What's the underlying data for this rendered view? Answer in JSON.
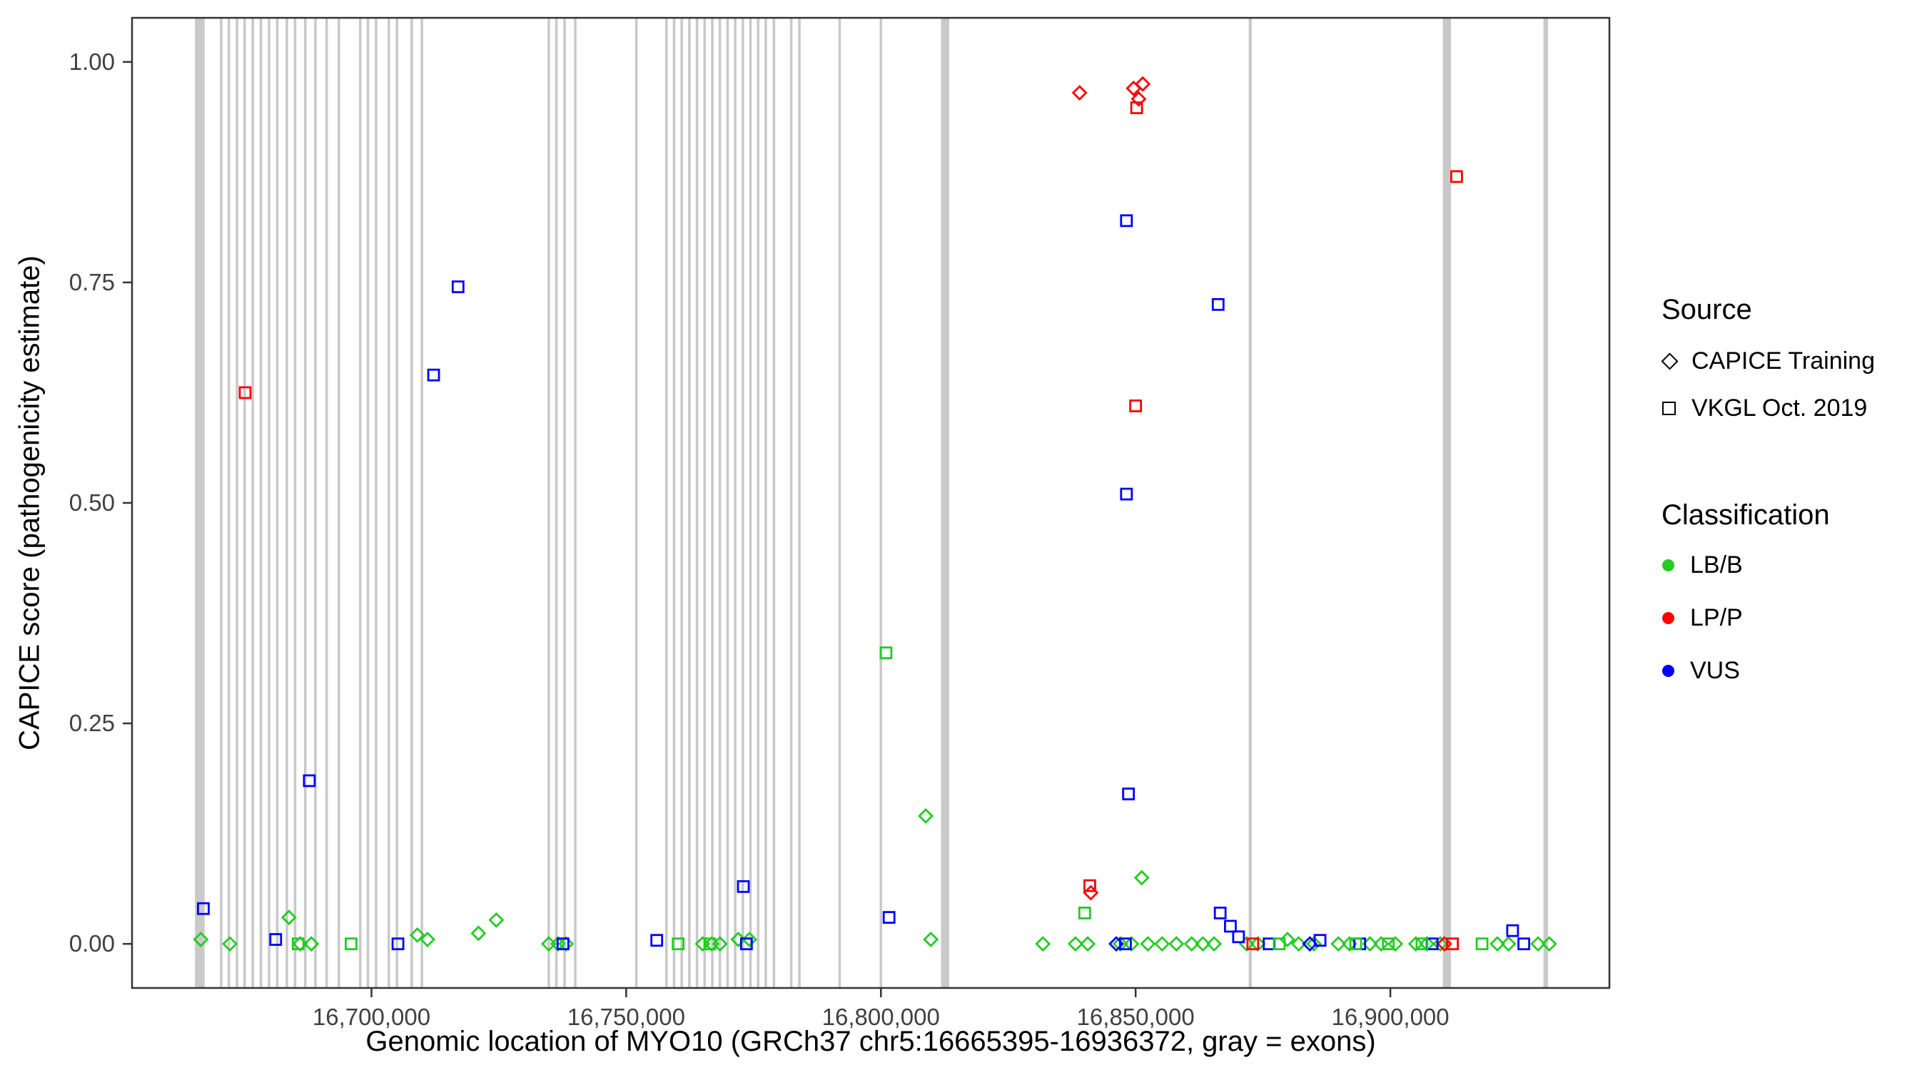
{
  "chart_data": {
    "type": "scatter",
    "title": "",
    "xlabel": "Genomic location of MYO10 (GRCh37 chr5:16665395-16936372, gray = exons)",
    "ylabel": "CAPICE score (pathogenicity estimate)",
    "xlim": [
      16653000,
      16943000
    ],
    "ylim": [
      -0.05,
      1.05
    ],
    "grid": false,
    "x_ticks": [
      {
        "value": 16700000,
        "label": "16,700,000"
      },
      {
        "value": 16750000,
        "label": "16,750,000"
      },
      {
        "value": 16800000,
        "label": "16,800,000"
      },
      {
        "value": 16850000,
        "label": "16,850,000"
      },
      {
        "value": 16900000,
        "label": "16,900,000"
      }
    ],
    "y_ticks": [
      {
        "value": 0.0,
        "label": "0.00"
      },
      {
        "value": 0.25,
        "label": "0.25"
      },
      {
        "value": 0.5,
        "label": "0.50"
      },
      {
        "value": 0.75,
        "label": "0.75"
      },
      {
        "value": 1.0,
        "label": "1.00"
      }
    ],
    "colors": {
      "LB/B": "#22CC22",
      "LP/P": "#FF0000",
      "VUS": "#0000FF",
      "exon": "#C9C9C9",
      "axis_text": "#404040",
      "panel_border": "#333333"
    },
    "source_markers": {
      "CAPICE": "diamond",
      "VKGL": "square"
    },
    "legend": {
      "position": "right",
      "source": {
        "title": "Source",
        "items": [
          {
            "label": "CAPICE Training",
            "marker": "diamond"
          },
          {
            "label": "VKGL Oct. 2019",
            "marker": "square"
          }
        ]
      },
      "classification": {
        "title": "Classification",
        "items": [
          {
            "label": "LB/B",
            "color": "#22CC22"
          },
          {
            "label": "LP/P",
            "color": "#FF0000"
          },
          {
            "label": "VUS",
            "color": "#0000FF"
          }
        ]
      }
    },
    "exons_format": [
      "genomic_position",
      "width_bp"
    ],
    "exons": [
      [
        16666300,
        1900
      ],
      [
        16670500,
        500
      ],
      [
        16672000,
        500
      ],
      [
        16673600,
        500
      ],
      [
        16675100,
        500
      ],
      [
        16676700,
        500
      ],
      [
        16678300,
        500
      ],
      [
        16679900,
        500
      ],
      [
        16681500,
        500
      ],
      [
        16683400,
        500
      ],
      [
        16685000,
        500
      ],
      [
        16687000,
        500
      ],
      [
        16689000,
        500
      ],
      [
        16691200,
        500
      ],
      [
        16693600,
        500
      ],
      [
        16697800,
        500
      ],
      [
        16699300,
        500
      ],
      [
        16700900,
        500
      ],
      [
        16703400,
        500
      ],
      [
        16705000,
        500
      ],
      [
        16707900,
        500
      ],
      [
        16709900,
        500
      ],
      [
        16734800,
        500
      ],
      [
        16736300,
        500
      ],
      [
        16737900,
        500
      ],
      [
        16740000,
        500
      ],
      [
        16752000,
        500
      ],
      [
        16757900,
        500
      ],
      [
        16759400,
        500
      ],
      [
        16760900,
        500
      ],
      [
        16762400,
        500
      ],
      [
        16763900,
        500
      ],
      [
        16765400,
        500
      ],
      [
        16766900,
        500
      ],
      [
        16768400,
        500
      ],
      [
        16769900,
        500
      ],
      [
        16771400,
        500
      ],
      [
        16772900,
        500
      ],
      [
        16774400,
        500
      ],
      [
        16775900,
        500
      ],
      [
        16777400,
        500
      ],
      [
        16779000,
        500
      ],
      [
        16782400,
        500
      ],
      [
        16784000,
        500
      ],
      [
        16791900,
        500
      ],
      [
        16800000,
        500
      ],
      [
        16812600,
        1600
      ],
      [
        16872500,
        600
      ],
      [
        16911100,
        1600
      ],
      [
        16930500,
        900
      ]
    ],
    "points_format": [
      "genomic_position",
      "capice_score",
      "source",
      "classification"
    ],
    "points": [
      [
        16666500,
        0.005,
        "CAPICE",
        "LB/B"
      ],
      [
        16672200,
        0.0,
        "CAPICE",
        "LB/B"
      ],
      [
        16683800,
        0.03,
        "CAPICE",
        "LB/B"
      ],
      [
        16686000,
        0.0,
        "CAPICE",
        "LB/B"
      ],
      [
        16688200,
        0.0,
        "CAPICE",
        "LB/B"
      ],
      [
        16709000,
        0.01,
        "CAPICE",
        "LB/B"
      ],
      [
        16711000,
        0.005,
        "CAPICE",
        "LB/B"
      ],
      [
        16721000,
        0.012,
        "CAPICE",
        "LB/B"
      ],
      [
        16724500,
        0.027,
        "CAPICE",
        "LB/B"
      ],
      [
        16734800,
        0.0,
        "CAPICE",
        "LB/B"
      ],
      [
        16736600,
        0.0,
        "CAPICE",
        "LB/B"
      ],
      [
        16738200,
        0.0,
        "CAPICE",
        "LB/B"
      ],
      [
        16765000,
        0.0,
        "CAPICE",
        "LB/B"
      ],
      [
        16766800,
        0.0,
        "CAPICE",
        "LB/B"
      ],
      [
        16768400,
        0.0,
        "CAPICE",
        "LB/B"
      ],
      [
        16772000,
        0.005,
        "CAPICE",
        "LB/B"
      ],
      [
        16774200,
        0.005,
        "CAPICE",
        "LB/B"
      ],
      [
        16808800,
        0.145,
        "CAPICE",
        "LB/B"
      ],
      [
        16809800,
        0.005,
        "CAPICE",
        "LB/B"
      ],
      [
        16831800,
        0.0,
        "CAPICE",
        "LB/B"
      ],
      [
        16838200,
        0.0,
        "CAPICE",
        "LB/B"
      ],
      [
        16840600,
        0.0,
        "CAPICE",
        "LB/B"
      ],
      [
        16847000,
        0.0,
        "CAPICE",
        "LB/B"
      ],
      [
        16849200,
        0.0,
        "CAPICE",
        "LB/B"
      ],
      [
        16851200,
        0.075,
        "CAPICE",
        "LB/B"
      ],
      [
        16852400,
        0.0,
        "CAPICE",
        "LB/B"
      ],
      [
        16855200,
        0.0,
        "CAPICE",
        "LB/B"
      ],
      [
        16858000,
        0.0,
        "CAPICE",
        "LB/B"
      ],
      [
        16861000,
        0.0,
        "CAPICE",
        "LB/B"
      ],
      [
        16863200,
        0.0,
        "CAPICE",
        "LB/B"
      ],
      [
        16865400,
        0.0,
        "CAPICE",
        "LB/B"
      ],
      [
        16871800,
        0.0,
        "CAPICE",
        "LB/B"
      ],
      [
        16874000,
        0.0,
        "CAPICE",
        "LB/B"
      ],
      [
        16879800,
        0.005,
        "CAPICE",
        "LB/B"
      ],
      [
        16882000,
        0.0,
        "CAPICE",
        "LB/B"
      ],
      [
        16885000,
        0.0,
        "CAPICE",
        "LB/B"
      ],
      [
        16889800,
        0.0,
        "CAPICE",
        "LB/B"
      ],
      [
        16892000,
        0.0,
        "CAPICE",
        "LB/B"
      ],
      [
        16896000,
        0.0,
        "CAPICE",
        "LB/B"
      ],
      [
        16898200,
        0.0,
        "CAPICE",
        "LB/B"
      ],
      [
        16901000,
        0.0,
        "CAPICE",
        "LB/B"
      ],
      [
        16905000,
        0.0,
        "CAPICE",
        "LB/B"
      ],
      [
        16907200,
        0.0,
        "CAPICE",
        "LB/B"
      ],
      [
        16909800,
        0.0,
        "CAPICE",
        "LB/B"
      ],
      [
        16921000,
        0.0,
        "CAPICE",
        "LB/B"
      ],
      [
        16923200,
        0.0,
        "CAPICE",
        "LB/B"
      ],
      [
        16929000,
        0.0,
        "CAPICE",
        "LB/B"
      ],
      [
        16931200,
        0.0,
        "CAPICE",
        "LB/B"
      ],
      [
        16839000,
        0.965,
        "CAPICE",
        "LP/P"
      ],
      [
        16849600,
        0.97,
        "CAPICE",
        "LP/P"
      ],
      [
        16851400,
        0.975,
        "CAPICE",
        "LP/P"
      ],
      [
        16850600,
        0.958,
        "CAPICE",
        "LP/P"
      ],
      [
        16841200,
        0.058,
        "CAPICE",
        "LP/P"
      ],
      [
        16910600,
        0.0,
        "CAPICE",
        "LP/P"
      ],
      [
        16846200,
        0.0,
        "CAPICE",
        "VUS"
      ],
      [
        16884200,
        0.0,
        "CAPICE",
        "VUS"
      ],
      [
        16675200,
        0.625,
        "VKGL",
        "LP/P"
      ],
      [
        16850200,
        0.948,
        "VKGL",
        "LP/P"
      ],
      [
        16850000,
        0.61,
        "VKGL",
        "LP/P"
      ],
      [
        16841000,
        0.066,
        "VKGL",
        "LP/P"
      ],
      [
        16913000,
        0.87,
        "VKGL",
        "LP/P"
      ],
      [
        16873000,
        0.0,
        "VKGL",
        "LP/P"
      ],
      [
        16912200,
        0.0,
        "VKGL",
        "LP/P"
      ],
      [
        16667000,
        0.04,
        "VKGL",
        "VUS"
      ],
      [
        16687800,
        0.185,
        "VKGL",
        "VUS"
      ],
      [
        16712200,
        0.645,
        "VKGL",
        "VUS"
      ],
      [
        16717000,
        0.745,
        "VKGL",
        "VUS"
      ],
      [
        16848200,
        0.82,
        "VKGL",
        "VUS"
      ],
      [
        16848200,
        0.51,
        "VKGL",
        "VUS"
      ],
      [
        16848600,
        0.17,
        "VKGL",
        "VUS"
      ],
      [
        16866200,
        0.725,
        "VKGL",
        "VUS"
      ],
      [
        16773000,
        0.065,
        "VKGL",
        "VUS"
      ],
      [
        16801600,
        0.03,
        "VKGL",
        "VUS"
      ],
      [
        16866600,
        0.035,
        "VKGL",
        "VUS"
      ],
      [
        16868600,
        0.02,
        "VKGL",
        "VUS"
      ],
      [
        16870200,
        0.008,
        "VKGL",
        "VUS"
      ],
      [
        16924000,
        0.015,
        "VKGL",
        "VUS"
      ],
      [
        16681200,
        0.005,
        "VKGL",
        "VUS"
      ],
      [
        16705200,
        0.0,
        "VKGL",
        "VUS"
      ],
      [
        16737600,
        0.0,
        "VKGL",
        "VUS"
      ],
      [
        16756000,
        0.004,
        "VKGL",
        "VUS"
      ],
      [
        16773600,
        0.0,
        "VKGL",
        "VUS"
      ],
      [
        16848000,
        0.0,
        "VKGL",
        "VUS"
      ],
      [
        16876200,
        0.0,
        "VKGL",
        "VUS"
      ],
      [
        16886200,
        0.004,
        "VKGL",
        "VUS"
      ],
      [
        16894000,
        0.0,
        "VKGL",
        "VUS"
      ],
      [
        16908200,
        0.0,
        "VKGL",
        "VUS"
      ],
      [
        16926200,
        0.0,
        "VKGL",
        "VUS"
      ],
      [
        16801000,
        0.33,
        "VKGL",
        "LB/B"
      ],
      [
        16840000,
        0.035,
        "VKGL",
        "LB/B"
      ],
      [
        16685600,
        0.0,
        "VKGL",
        "LB/B"
      ],
      [
        16696000,
        0.0,
        "VKGL",
        "LB/B"
      ],
      [
        16760200,
        0.0,
        "VKGL",
        "LB/B"
      ],
      [
        16766400,
        0.0,
        "VKGL",
        "LB/B"
      ],
      [
        16878200,
        0.0,
        "VKGL",
        "LB/B"
      ],
      [
        16893200,
        0.0,
        "VKGL",
        "LB/B"
      ],
      [
        16899600,
        0.0,
        "VKGL",
        "LB/B"
      ],
      [
        16906200,
        0.0,
        "VKGL",
        "LB/B"
      ],
      [
        16918000,
        0.0,
        "VKGL",
        "LB/B"
      ]
    ]
  }
}
